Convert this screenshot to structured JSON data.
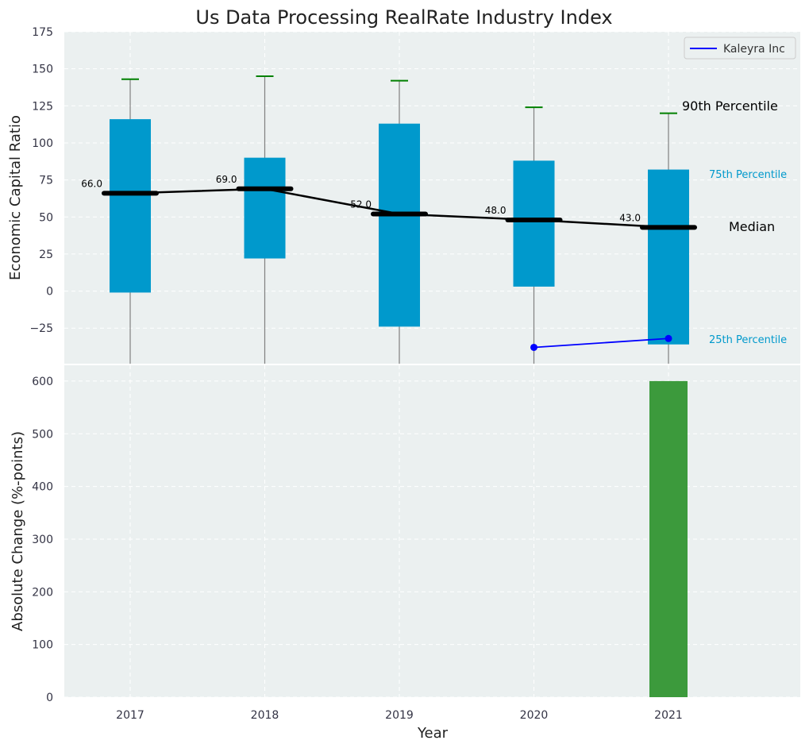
{
  "chart_data": [
    {
      "type": "box-percentile",
      "title": "Us Data Processing RealRate Industry Index",
      "ylabel": "Economic Capital Ratio",
      "ylim": [
        -49,
        175
      ],
      "yticks": [
        -25,
        0,
        25,
        50,
        75,
        100,
        125,
        150,
        175
      ],
      "categories": [
        "2017",
        "2018",
        "2019",
        "2020",
        "2021"
      ],
      "p25": [
        -1,
        22,
        -24,
        3,
        -36
      ],
      "p75": [
        116,
        90,
        113,
        88,
        82
      ],
      "p90": [
        143,
        145,
        142,
        124,
        120
      ],
      "median": [
        66,
        69,
        52,
        48,
        43
      ],
      "median_labels": [
        "66.0",
        "69.0",
        "52.0",
        "48.0",
        "43.0"
      ],
      "series": [
        {
          "name": "Kaleyra Inc",
          "x": [
            "2020",
            "2021"
          ],
          "values": [
            -38,
            -32
          ]
        }
      ],
      "annotations": {
        "p90": "90th Percentile",
        "p75": "75th Percentile",
        "median": "Median",
        "p25": "25th Percentile"
      },
      "legend": "top-right",
      "grid": true
    },
    {
      "type": "bar",
      "ylabel": "Absolute Change (%-points)",
      "xlabel": "Year",
      "ylim": [
        0,
        630
      ],
      "yticks": [
        0,
        100,
        200,
        300,
        400,
        500,
        600
      ],
      "categories": [
        "2017",
        "2018",
        "2019",
        "2020",
        "2021"
      ],
      "values": [
        0,
        0,
        0,
        0,
        600
      ],
      "grid": true
    }
  ],
  "colors": {
    "box": "#0099cc",
    "whisker": "#808080",
    "p90_cap": "#008000",
    "median_line": "#000000",
    "company": "#0000ff",
    "change_bar": "#3c9a3c",
    "panel_bg": "#ebf0f0",
    "label_text": "#333344",
    "p75_text": "#0099cc"
  }
}
